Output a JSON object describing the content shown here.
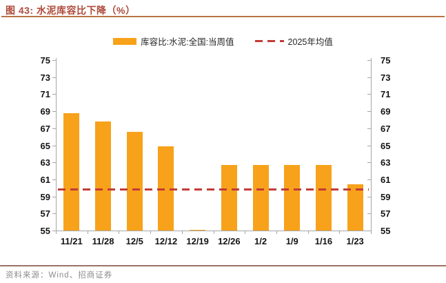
{
  "header": {
    "title": "图 43: 水泥库容比下降（%）"
  },
  "legend": {
    "bar_label": "库容比:水泥:全国:当周值",
    "line_label": "2025年均值"
  },
  "footer": {
    "source": "资料来源：Wind、招商证券"
  },
  "colors": {
    "bar": "#F7A21A",
    "mean_line": "#C23A37",
    "title": "#AE4A3B",
    "title_underline": "#B97446",
    "axis": "#A6A6A6",
    "footer_divider": "#9A7265",
    "footer_text": "#8C8C8C"
  },
  "chart_data": {
    "type": "bar",
    "title": "水泥库容比下降（%）",
    "categories": [
      "11/21",
      "11/28",
      "12/5",
      "12/12",
      "12/19",
      "12/26",
      "1/2",
      "1/9",
      "1/16",
      "1/23"
    ],
    "series": [
      {
        "name": "库容比:水泥:全国:当周值",
        "type": "bar",
        "values": [
          68.8,
          67.8,
          66.6,
          64.9,
          55.1,
          62.7,
          62.7,
          62.7,
          62.7,
          60.4
        ]
      },
      {
        "name": "2025年均值",
        "type": "dashed-line",
        "value": 59.8
      }
    ],
    "xlabel": "",
    "ylabel": "",
    "ylim": [
      55,
      75
    ],
    "ytick_step": 2,
    "y_axis_sides": [
      "left",
      "right"
    ],
    "grid": false,
    "legend_position": "top"
  }
}
